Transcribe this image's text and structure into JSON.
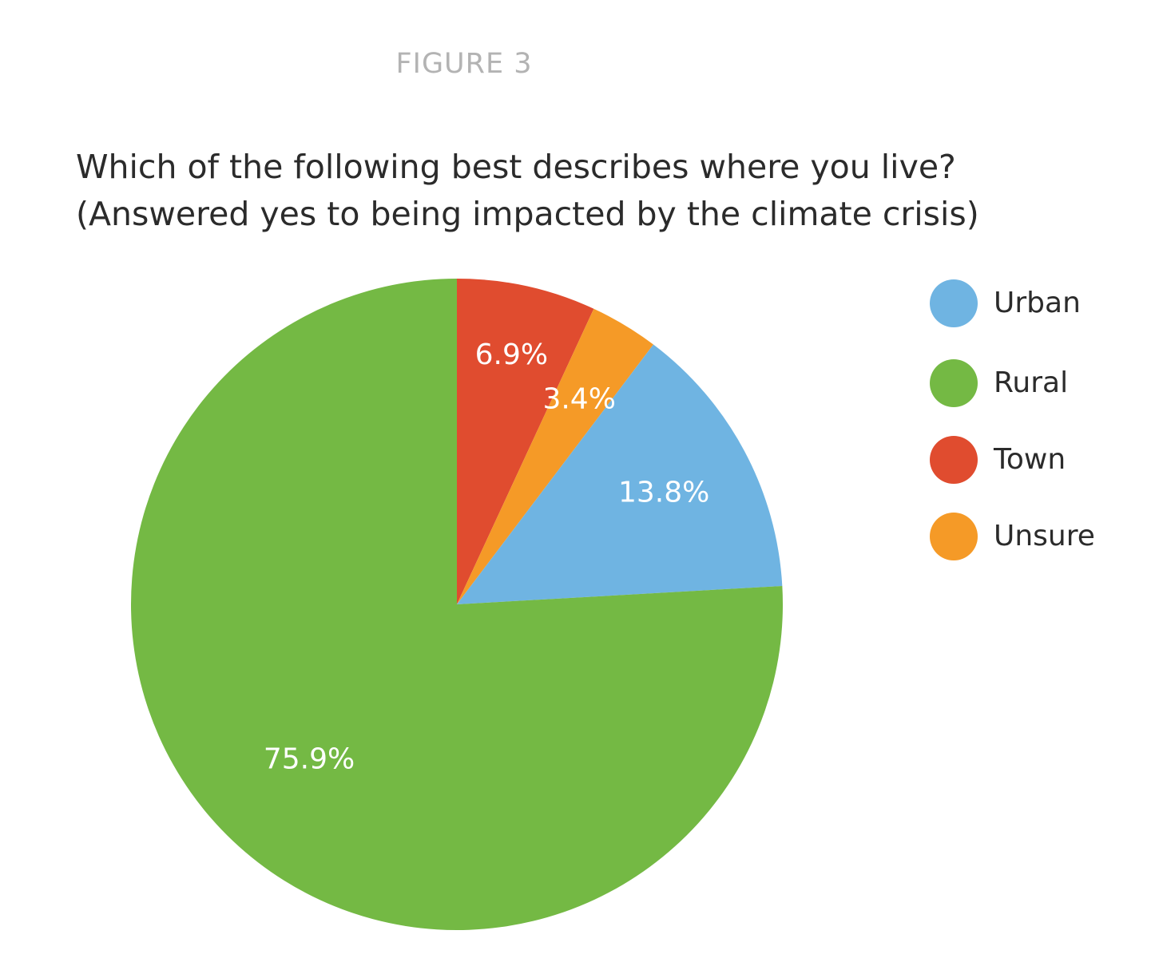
{
  "header": {
    "figure_label": "FIGURE 3",
    "title_line1": "Which of the following best describes where you live?",
    "title_line2": "(Answered yes to being impacted by the climate crisis)"
  },
  "chart_data": {
    "type": "pie",
    "start_angle_deg": 0,
    "direction": "clockwise",
    "slices": [
      {
        "name": "Town",
        "value": 6.9,
        "label": "6.9%",
        "color": "#e04c2f"
      },
      {
        "name": "Unsure",
        "value": 3.4,
        "label": "3.4%",
        "color": "#f59a27"
      },
      {
        "name": "Urban",
        "value": 13.8,
        "label": "13.8%",
        "color": "#6fb4e2"
      },
      {
        "name": "Rural",
        "value": 75.9,
        "label": "75.9%",
        "color": "#74b944"
      }
    ],
    "legend": {
      "placement": "right",
      "items": [
        {
          "name": "Urban",
          "color": "#6fb4e2"
        },
        {
          "name": "Rural",
          "color": "#74b944"
        },
        {
          "name": "Town",
          "color": "#e04c2f"
        },
        {
          "name": "Unsure",
          "color": "#f59a27"
        }
      ]
    }
  }
}
